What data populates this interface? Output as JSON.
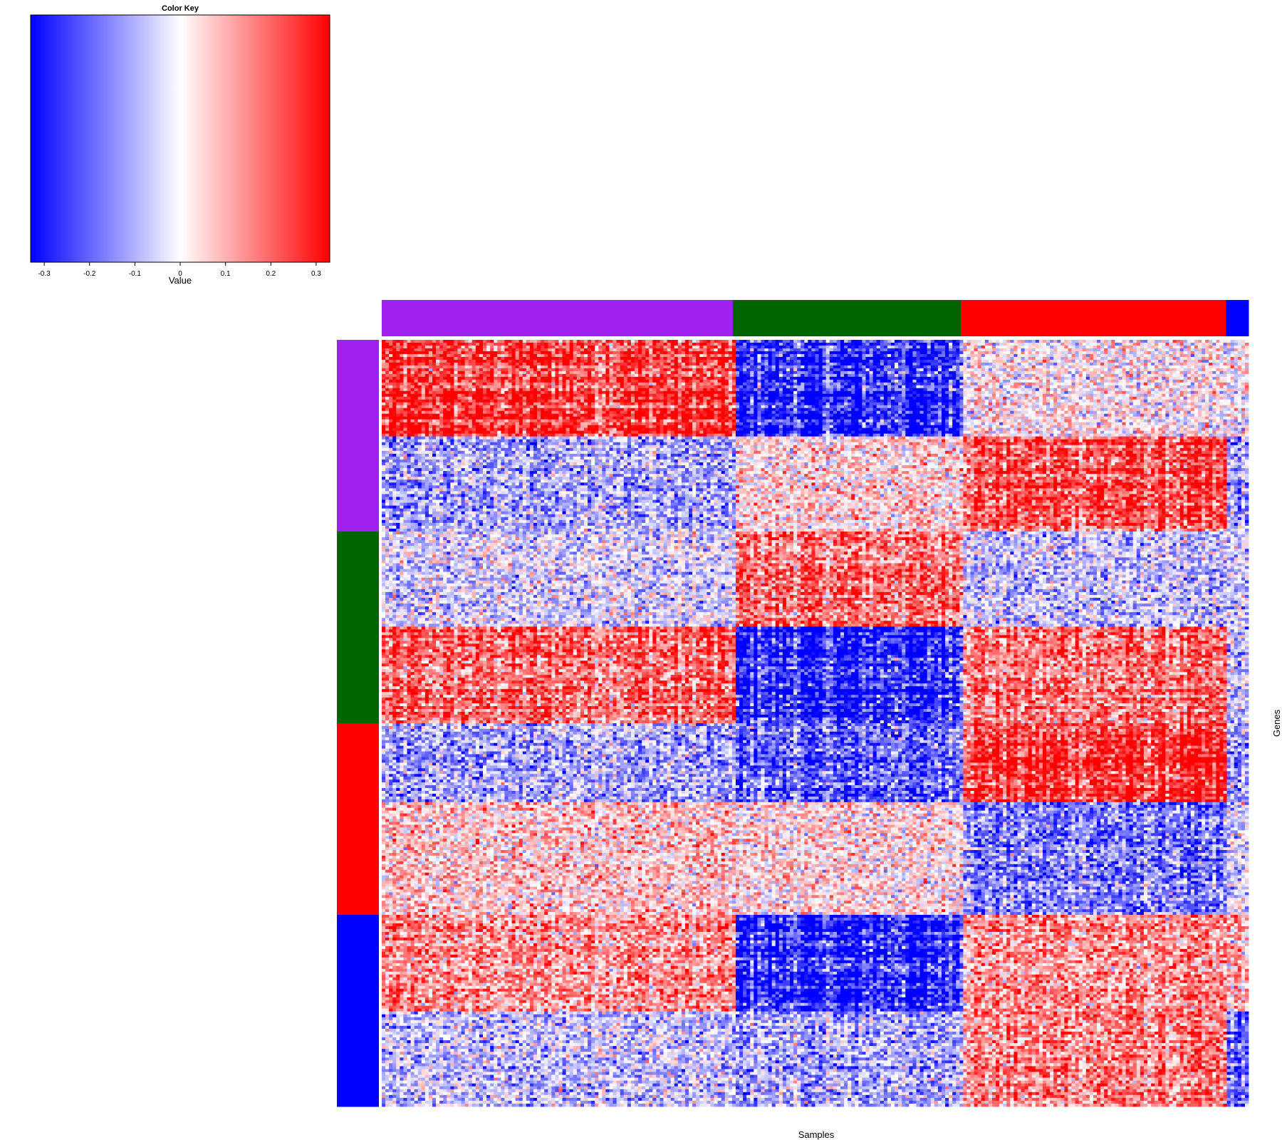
{
  "chart_data": {
    "type": "heatmap",
    "color_key": {
      "title": "Color Key",
      "xlabel": "Value",
      "range": [
        -0.33,
        0.33
      ],
      "colors": {
        "low": "#0000FF",
        "mid": "#FFFFFF",
        "high": "#FF0000"
      },
      "ticks": [
        -0.3,
        -0.2,
        -0.1,
        0,
        0.1,
        0.2,
        0.3
      ],
      "tick_labels": [
        "-0.3",
        "-0.2",
        "-0.1",
        "0",
        "0.1",
        "0.2",
        "0.3"
      ]
    },
    "xlabel": "Samples",
    "ylabel": "Genes",
    "column_groups": [
      {
        "name": "purple",
        "color": "#A020F0",
        "size": 0.405
      },
      {
        "name": "darkgreen",
        "color": "#006400",
        "size": 0.263
      },
      {
        "name": "red",
        "color": "#FF0000",
        "size": 0.306
      },
      {
        "name": "blue",
        "color": "#0000FF",
        "size": 0.026
      }
    ],
    "row_groups": [
      {
        "name": "purple",
        "color": "#A020F0",
        "size": 0.25
      },
      {
        "name": "darkgreen",
        "color": "#006400",
        "size": 0.25
      },
      {
        "name": "red",
        "color": "#FF0000",
        "size": 0.25
      },
      {
        "name": "blue",
        "color": "#0000FF",
        "size": 0.25
      }
    ],
    "row_blocks": [
      {
        "row_group": "purple",
        "size": 0.126,
        "values": [
          0.28,
          -0.3,
          0.02,
          0.0
        ]
      },
      {
        "row_group": "purple",
        "size": 0.124,
        "values": [
          -0.12,
          0.06,
          0.25,
          -0.12
        ]
      },
      {
        "row_group": "darkgreen",
        "size": 0.124,
        "values": [
          -0.05,
          0.2,
          -0.08,
          -0.05
        ]
      },
      {
        "row_group": "darkgreen",
        "size": 0.126,
        "values": [
          0.22,
          -0.32,
          0.2,
          -0.08
        ]
      },
      {
        "row_group": "red",
        "size": 0.103,
        "values": [
          -0.12,
          -0.22,
          0.3,
          -0.15
        ]
      },
      {
        "row_group": "red",
        "size": 0.147,
        "values": [
          0.08,
          0.05,
          -0.18,
          -0.05
        ]
      },
      {
        "row_group": "blue",
        "size": 0.126,
        "values": [
          0.15,
          -0.3,
          0.15,
          0.1
        ]
      },
      {
        "row_group": "blue",
        "size": 0.124,
        "values": [
          -0.08,
          -0.12,
          0.18,
          -0.22
        ]
      }
    ]
  }
}
